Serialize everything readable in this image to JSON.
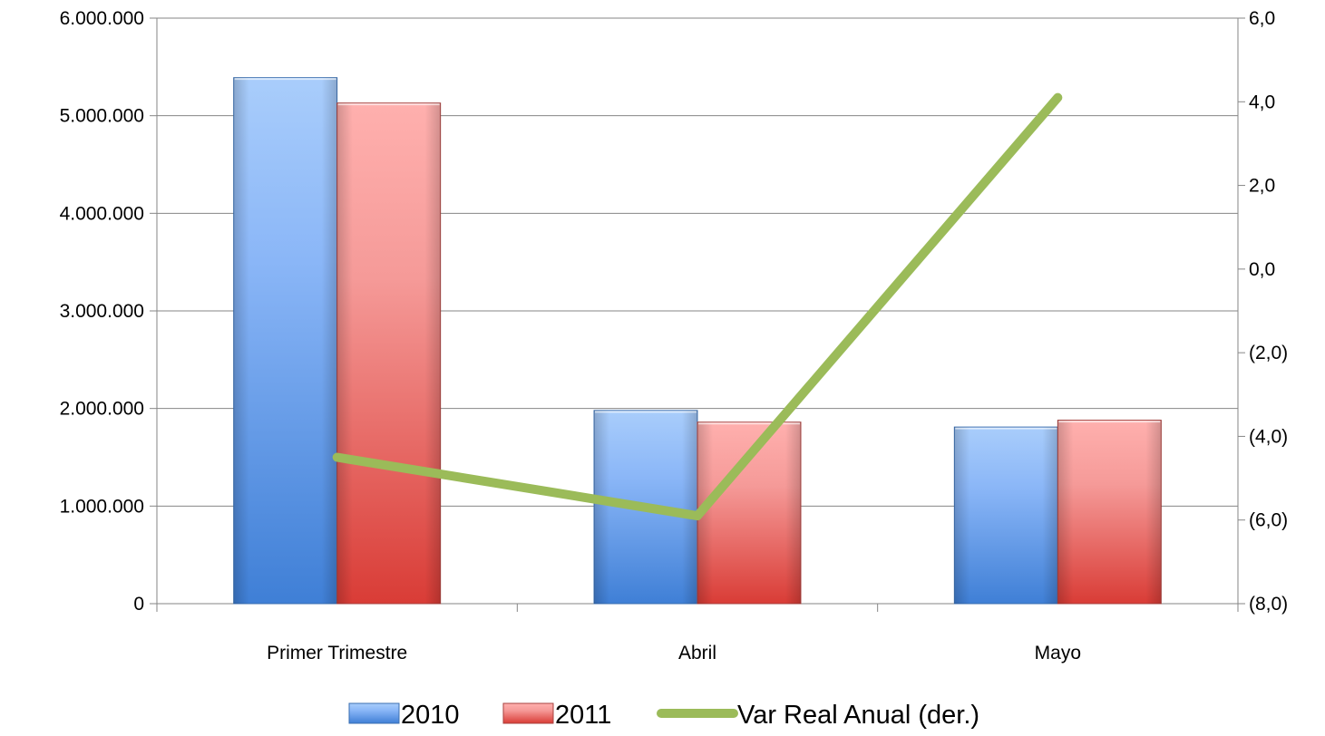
{
  "chart_data": {
    "type": "bar",
    "categories": [
      "Primer Trimestre",
      "Abril",
      "Mayo"
    ],
    "series": [
      {
        "name": "2010",
        "type": "bar",
        "axis": "left",
        "values": [
          5390000,
          1980000,
          1810000
        ],
        "color": "#4f81bd"
      },
      {
        "name": "2011",
        "type": "bar",
        "axis": "left",
        "values": [
          5130000,
          1860000,
          1880000
        ],
        "color": "#c0504d"
      },
      {
        "name": "Var Real Anual (der.)",
        "type": "line",
        "axis": "right",
        "values": [
          -4.5,
          -5.9,
          4.1
        ],
        "color": "#9bbb59"
      }
    ],
    "left_axis": {
      "ylim": [
        0,
        6000000
      ],
      "ticks": [
        0,
        1000000,
        2000000,
        3000000,
        4000000,
        5000000,
        6000000
      ],
      "tick_labels": [
        "0",
        "1.000.000",
        "2.000.000",
        "3.000.000",
        "4.000.000",
        "5.000.000",
        "6.000.000"
      ]
    },
    "right_axis": {
      "ylim": [
        -8,
        6
      ],
      "ticks": [
        -8,
        -6,
        -4,
        -2,
        0,
        2,
        4,
        6
      ],
      "tick_labels": [
        "(8,0)",
        "(6,0)",
        "(4,0)",
        "(2,0)",
        "0,0",
        "2,0",
        "4,0",
        "6,0"
      ]
    },
    "grid": true,
    "legend_position": "bottom",
    "title": "",
    "xlabel": "",
    "ylabel": ""
  }
}
